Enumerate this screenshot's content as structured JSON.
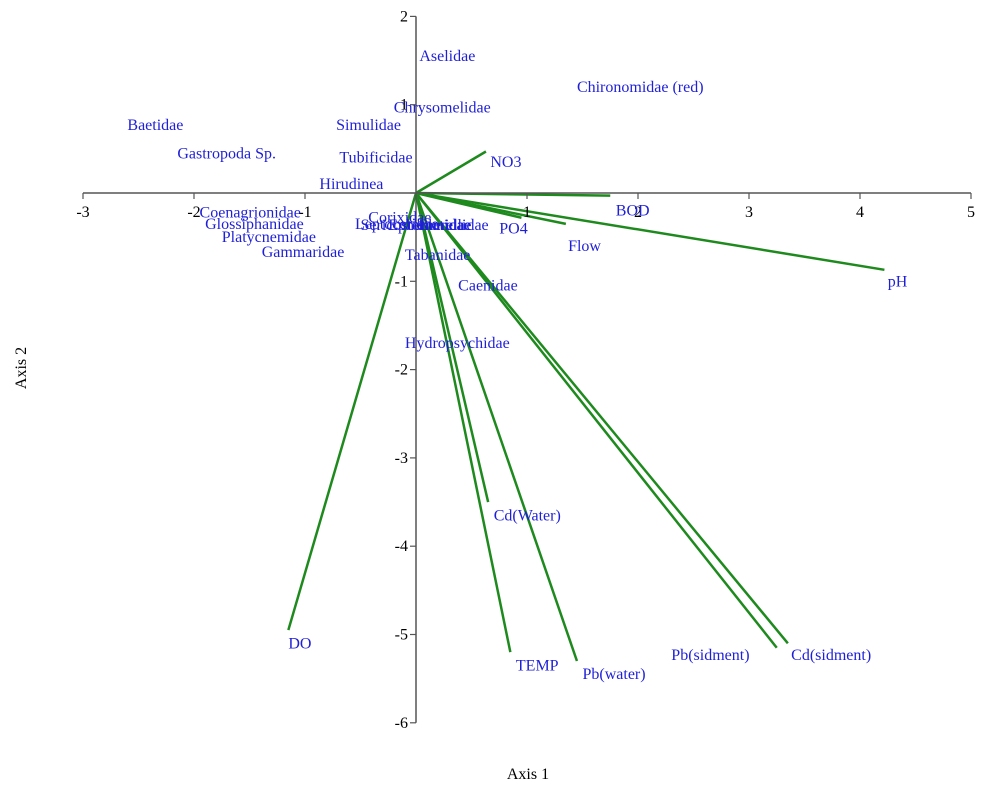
{
  "chart_data": {
    "type": "biplot",
    "xlabel": "Axis 1",
    "ylabel": "Axis 2",
    "xlim": [
      -3,
      5
    ],
    "ylim": [
      -6,
      2
    ],
    "xticks": [
      -3,
      -2,
      -1,
      0,
      1,
      2,
      3,
      4,
      5
    ],
    "yticks": [
      2,
      1,
      0,
      -1,
      -2,
      -3,
      -4,
      -5,
      -6
    ],
    "colors": {
      "vector": "#1e8a1e",
      "label": "#1f1fd8",
      "axis": "#555555"
    },
    "vectors": [
      {
        "name": "NO3",
        "x": 0.63,
        "y": 0.47
      },
      {
        "name": "BOD",
        "x": 1.75,
        "y": -0.03
      },
      {
        "name": "PO4",
        "x": 0.95,
        "y": -0.28
      },
      {
        "name": "Flow",
        "x": 1.35,
        "y": -0.35
      },
      {
        "name": "pH",
        "x": 4.22,
        "y": -0.87
      },
      {
        "name": "DO",
        "x": -1.15,
        "y": -4.95
      },
      {
        "name": "Cd(Water)",
        "x": 0.65,
        "y": -3.5
      },
      {
        "name": "TEMP",
        "x": 0.85,
        "y": -5.2
      },
      {
        "name": "Pb(water)",
        "x": 1.45,
        "y": -5.3
      },
      {
        "name": "Pb(sidment)",
        "x": 3.25,
        "y": -5.15
      },
      {
        "name": "Cd(sidment)",
        "x": 3.35,
        "y": -5.1
      }
    ],
    "vector_labels": [
      {
        "name": "NO3",
        "x": 0.67,
        "y": 0.35
      },
      {
        "name": "BOD",
        "x": 1.8,
        "y": -0.2
      },
      {
        "name": "PO4",
        "x": 0.75,
        "y": -0.4
      },
      {
        "name": "Flow",
        "x": 1.37,
        "y": -0.6
      },
      {
        "name": "pH",
        "x": 4.25,
        "y": -1.0
      },
      {
        "name": "DO",
        "x": -1.15,
        "y": -5.1
      },
      {
        "name": "Cd(Water)",
        "x": 0.7,
        "y": -3.65
      },
      {
        "name": "TEMP",
        "x": 0.9,
        "y": -5.35
      },
      {
        "name": "Pb(water)",
        "x": 1.5,
        "y": -5.45
      },
      {
        "name": "Pb(sidment)",
        "x": 2.3,
        "y": -5.23
      },
      {
        "name": "Cd(sidment)",
        "x": 3.38,
        "y": -5.23
      }
    ],
    "points": [
      {
        "name": "Aselidae",
        "x": 0.03,
        "y": 1.55
      },
      {
        "name": "Chironomidae (red)",
        "x": 1.45,
        "y": 1.2
      },
      {
        "name": "Chrysomelidae",
        "x": -0.2,
        "y": 0.97
      },
      {
        "name": "Baetidae",
        "x": -2.6,
        "y": 0.77
      },
      {
        "name": "Simulidae",
        "x": -0.72,
        "y": 0.77
      },
      {
        "name": "Gastropoda Sp.",
        "x": -2.15,
        "y": 0.45
      },
      {
        "name": "Tubificidae",
        "x": -0.69,
        "y": 0.4
      },
      {
        "name": "Hirudinea",
        "x": -0.87,
        "y": 0.1
      },
      {
        "name": "Coenagrionidae",
        "x": -1.95,
        "y": -0.22
      },
      {
        "name": "Glossiphanidae",
        "x": -1.9,
        "y": -0.35
      },
      {
        "name": "Platycnemidae",
        "x": -1.75,
        "y": -0.5
      },
      {
        "name": "Gammaridae",
        "x": -1.39,
        "y": -0.67
      },
      {
        "name": "Corixidae",
        "x": -0.43,
        "y": -0.28
      },
      {
        "name": "Leptoceridae",
        "x": -0.55,
        "y": -0.35
      },
      {
        "name": "Sericostomatidae",
        "x": -0.5,
        "y": -0.36
      },
      {
        "name": "Ephemerellidae",
        "x": -0.25,
        "y": -0.36
      },
      {
        "name": "Elmidae",
        "x": 0.02,
        "y": -0.36
      },
      {
        "name": "Tabanidae",
        "x": -0.1,
        "y": -0.7
      },
      {
        "name": "Caenidae",
        "x": 0.38,
        "y": -1.05
      },
      {
        "name": "Hydropsychidae",
        "x": -0.1,
        "y": -1.7
      }
    ]
  }
}
